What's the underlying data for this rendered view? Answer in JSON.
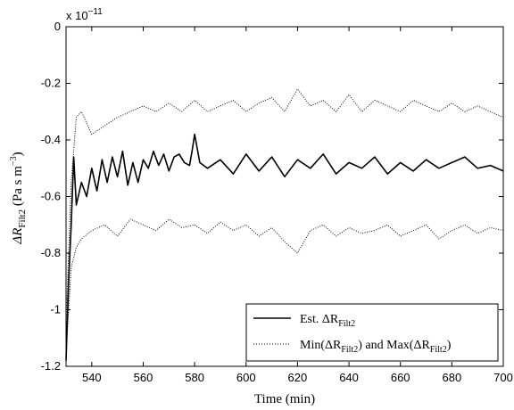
{
  "chart_data": {
    "type": "line",
    "xlabel": "Time (min)",
    "ylabel": {
      "main": "ΔR",
      "sub": "Filt2",
      "unit": " (Pa s m",
      "unit_sup": "−3",
      "unit_end": ")"
    },
    "xlim": [
      530,
      700
    ],
    "ylim": [
      -1.2,
      0
    ],
    "y_multiplier": "x 10",
    "y_multiplier_exp": "−11",
    "x_ticks": [
      540,
      560,
      580,
      600,
      620,
      640,
      660,
      680,
      700
    ],
    "y_ticks": [
      0,
      -0.2,
      -0.4,
      -0.6,
      -0.8,
      -1,
      -1.2
    ],
    "x_tick_labels": [
      "540",
      "560",
      "580",
      "600",
      "620",
      "640",
      "660",
      "680",
      "700"
    ],
    "y_tick_labels": [
      "0",
      "-0.2",
      "-0.4",
      "-0.6",
      "-0.8",
      "-1",
      "-1.2"
    ],
    "grid": false,
    "legend_position": "bottom-right",
    "series": [
      {
        "name": {
          "prefix": "Est. ΔR",
          "sub": "Filt2"
        },
        "style": "solid",
        "x": [
          530,
          531,
          532,
          533,
          534,
          536,
          538,
          540,
          542,
          544,
          546,
          548,
          550,
          552,
          554,
          556,
          558,
          560,
          562,
          564,
          566,
          568,
          570,
          572,
          574,
          576,
          578,
          579,
          580,
          582,
          585,
          590,
          595,
          600,
          605,
          610,
          615,
          620,
          625,
          630,
          635,
          640,
          645,
          650,
          655,
          660,
          665,
          670,
          675,
          680,
          685,
          690,
          695,
          700
        ],
        "y": [
          -1.18,
          -0.9,
          -0.7,
          -0.46,
          -0.63,
          -0.55,
          -0.6,
          -0.5,
          -0.58,
          -0.47,
          -0.55,
          -0.46,
          -0.53,
          -0.44,
          -0.56,
          -0.48,
          -0.55,
          -0.47,
          -0.5,
          -0.44,
          -0.49,
          -0.45,
          -0.51,
          -0.46,
          -0.45,
          -0.48,
          -0.49,
          -0.44,
          -0.38,
          -0.48,
          -0.5,
          -0.47,
          -0.52,
          -0.45,
          -0.51,
          -0.46,
          -0.53,
          -0.47,
          -0.5,
          -0.45,
          -0.52,
          -0.48,
          -0.5,
          -0.46,
          -0.52,
          -0.48,
          -0.51,
          -0.47,
          -0.5,
          -0.48,
          -0.46,
          -0.5,
          -0.49,
          -0.51
        ]
      },
      {
        "name": {
          "prefix": "Min(ΔR",
          "sub": "Filt2",
          "mid": ") and Max(ΔR",
          "sub2": "Filt2",
          "end": ")"
        },
        "style": "dotted",
        "band": "max",
        "x": [
          530,
          532,
          534,
          536,
          540,
          545,
          550,
          555,
          560,
          565,
          570,
          575,
          580,
          585,
          590,
          595,
          600,
          605,
          610,
          615,
          620,
          625,
          630,
          635,
          640,
          645,
          650,
          655,
          660,
          665,
          670,
          675,
          680,
          685,
          690,
          695,
          700
        ],
        "y": [
          -1.05,
          -0.55,
          -0.32,
          -0.3,
          -0.38,
          -0.35,
          -0.32,
          -0.3,
          -0.28,
          -0.3,
          -0.27,
          -0.3,
          -0.26,
          -0.3,
          -0.28,
          -0.26,
          -0.3,
          -0.27,
          -0.25,
          -0.3,
          -0.22,
          -0.28,
          -0.26,
          -0.3,
          -0.24,
          -0.3,
          -0.26,
          -0.28,
          -0.3,
          -0.26,
          -0.28,
          -0.3,
          -0.27,
          -0.3,
          -0.28,
          -0.3,
          -0.32
        ]
      },
      {
        "name": "",
        "style": "dotted",
        "band": "min",
        "x": [
          530,
          532,
          534,
          536,
          540,
          545,
          550,
          555,
          560,
          565,
          570,
          575,
          580,
          585,
          590,
          595,
          600,
          605,
          610,
          615,
          620,
          625,
          630,
          635,
          640,
          645,
          650,
          655,
          660,
          665,
          670,
          675,
          680,
          685,
          690,
          695,
          700
        ],
        "y": [
          -1.15,
          -0.85,
          -0.78,
          -0.75,
          -0.72,
          -0.7,
          -0.74,
          -0.68,
          -0.7,
          -0.72,
          -0.68,
          -0.71,
          -0.7,
          -0.73,
          -0.69,
          -0.72,
          -0.7,
          -0.74,
          -0.71,
          -0.76,
          -0.8,
          -0.72,
          -0.7,
          -0.74,
          -0.71,
          -0.73,
          -0.72,
          -0.7,
          -0.74,
          -0.72,
          -0.7,
          -0.75,
          -0.72,
          -0.7,
          -0.73,
          -0.71,
          -0.72
        ]
      }
    ]
  }
}
